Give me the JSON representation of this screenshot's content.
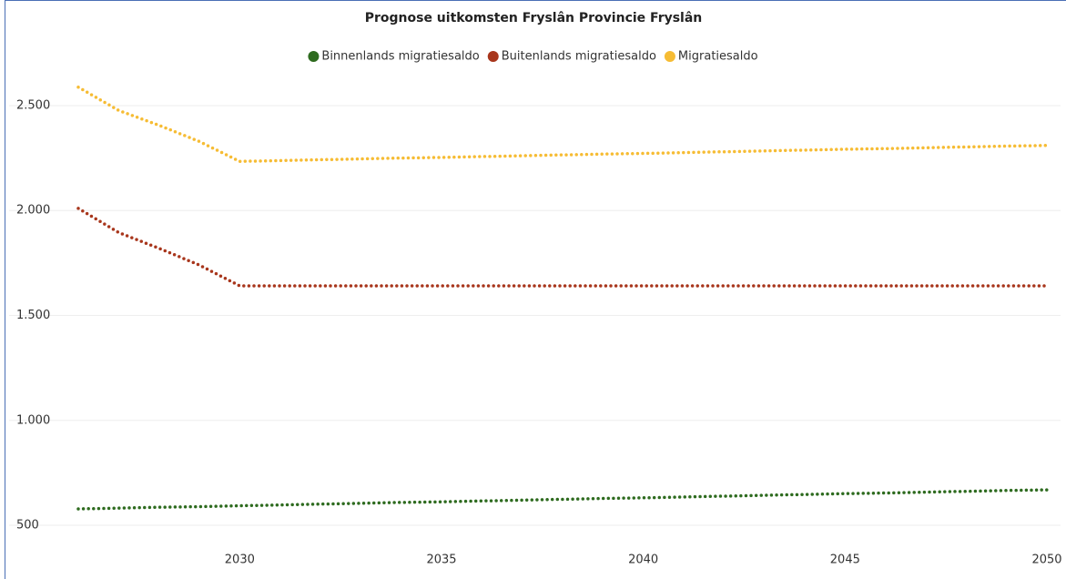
{
  "chart_data": {
    "type": "line",
    "title": "Prognose uitkomsten Fryslân Provincie Fryslân",
    "x": [
      2026,
      2027,
      2028,
      2029,
      2030,
      2031,
      2032,
      2033,
      2034,
      2035,
      2036,
      2037,
      2038,
      2039,
      2040,
      2041,
      2042,
      2043,
      2044,
      2045,
      2046,
      2047,
      2048,
      2049,
      2050
    ],
    "series": [
      {
        "name": "Binnenlands migratiesaldo",
        "color": "#2e6b1f",
        "values": [
          578,
          582,
          586,
          589,
          593,
          597,
          601,
          605,
          609,
          612,
          616,
          620,
          624,
          628,
          631,
          635,
          639,
          643,
          647,
          651,
          654,
          658,
          662,
          666,
          669
        ]
      },
      {
        "name": "Buitenlands migratiesaldo",
        "color": "#a8361c",
        "values": [
          2010,
          1895,
          1820,
          1740,
          1641,
          1641,
          1641,
          1641,
          1641,
          1641,
          1641,
          1641,
          1641,
          1641,
          1641,
          1641,
          1641,
          1641,
          1641,
          1641,
          1641,
          1641,
          1641,
          1641,
          1641
        ]
      },
      {
        "name": "Migratiesaldo",
        "color": "#f6bc34",
        "values": [
          2588,
          2477,
          2406,
          2329,
          2234,
          2238,
          2242,
          2246,
          2250,
          2253,
          2257,
          2261,
          2265,
          2269,
          2272,
          2276,
          2280,
          2284,
          2288,
          2292,
          2295,
          2299,
          2303,
          2307,
          2310
        ]
      }
    ],
    "xlim": [
      2026,
      2050
    ],
    "xticks": [
      2030,
      2035,
      2040,
      2045,
      2050
    ],
    "ylim": [
      350,
      2650
    ],
    "yticks": [
      500,
      {
        "value": 1000,
        "label": "1.000"
      },
      {
        "value": 1500,
        "label": "1.500"
      },
      {
        "value": 2000,
        "label": "2.000"
      },
      {
        "value": 2500,
        "label": "2.500"
      }
    ],
    "grid": true,
    "legend": "top"
  }
}
